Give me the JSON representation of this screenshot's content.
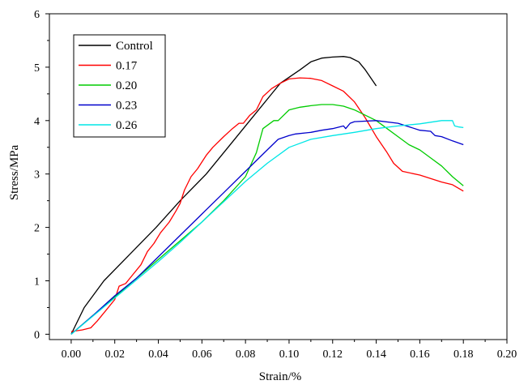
{
  "chart_data": {
    "type": "line",
    "xlabel": "Strain/%",
    "ylabel": "Stress/MPa",
    "xlim": [
      -0.01,
      0.2
    ],
    "ylim": [
      -0.1,
      6
    ],
    "xticks": [
      0.0,
      0.02,
      0.04,
      0.06,
      0.08,
      0.1,
      0.12,
      0.14,
      0.16,
      0.18,
      0.2
    ],
    "xtick_labels": [
      "0.00",
      "0.02",
      "0.04",
      "0.06",
      "0.08",
      "0.10",
      "0.12",
      "0.14",
      "0.16",
      "0.18",
      "0.20"
    ],
    "yticks": [
      0,
      1,
      2,
      3,
      4,
      5,
      6
    ],
    "ytick_labels": [
      "0",
      "1",
      "2",
      "3",
      "4",
      "5",
      "6"
    ],
    "grid": false,
    "legend_position": "top-left",
    "series": [
      {
        "name": "Control",
        "color": "#000000",
        "points": [
          [
            0.0,
            0.0
          ],
          [
            0.006,
            0.5
          ],
          [
            0.015,
            1.0
          ],
          [
            0.027,
            1.5
          ],
          [
            0.039,
            2.0
          ],
          [
            0.05,
            2.5
          ],
          [
            0.062,
            3.0
          ],
          [
            0.072,
            3.5
          ],
          [
            0.082,
            4.0
          ],
          [
            0.092,
            4.5
          ],
          [
            0.096,
            4.7
          ],
          [
            0.105,
            4.95
          ],
          [
            0.11,
            5.1
          ],
          [
            0.115,
            5.17
          ],
          [
            0.12,
            5.19
          ],
          [
            0.125,
            5.2
          ],
          [
            0.128,
            5.18
          ],
          [
            0.132,
            5.1
          ],
          [
            0.135,
            4.95
          ],
          [
            0.14,
            4.65
          ]
        ]
      },
      {
        "name": "0.17",
        "color": "#ff0000",
        "points": [
          [
            0.0,
            0.05
          ],
          [
            0.005,
            0.08
          ],
          [
            0.009,
            0.12
          ],
          [
            0.012,
            0.25
          ],
          [
            0.016,
            0.45
          ],
          [
            0.02,
            0.65
          ],
          [
            0.022,
            0.9
          ],
          [
            0.025,
            0.95
          ],
          [
            0.028,
            1.1
          ],
          [
            0.032,
            1.3
          ],
          [
            0.035,
            1.55
          ],
          [
            0.038,
            1.7
          ],
          [
            0.041,
            1.9
          ],
          [
            0.043,
            2.0
          ],
          [
            0.045,
            2.1
          ],
          [
            0.048,
            2.3
          ],
          [
            0.05,
            2.45
          ],
          [
            0.052,
            2.7
          ],
          [
            0.055,
            2.95
          ],
          [
            0.058,
            3.1
          ],
          [
            0.062,
            3.35
          ],
          [
            0.065,
            3.5
          ],
          [
            0.07,
            3.7
          ],
          [
            0.074,
            3.85
          ],
          [
            0.077,
            3.95
          ],
          [
            0.079,
            3.95
          ],
          [
            0.082,
            4.1
          ],
          [
            0.085,
            4.2
          ],
          [
            0.088,
            4.45
          ],
          [
            0.092,
            4.6
          ],
          [
            0.096,
            4.7
          ],
          [
            0.1,
            4.78
          ],
          [
            0.105,
            4.8
          ],
          [
            0.11,
            4.79
          ],
          [
            0.115,
            4.75
          ],
          [
            0.12,
            4.65
          ],
          [
            0.125,
            4.55
          ],
          [
            0.13,
            4.35
          ],
          [
            0.135,
            4.05
          ],
          [
            0.14,
            3.7
          ],
          [
            0.145,
            3.4
          ],
          [
            0.148,
            3.2
          ],
          [
            0.152,
            3.05
          ],
          [
            0.16,
            2.98
          ],
          [
            0.17,
            2.85
          ],
          [
            0.175,
            2.8
          ],
          [
            0.18,
            2.68
          ]
        ]
      },
      {
        "name": "0.20",
        "color": "#00cc00",
        "points": [
          [
            0.0,
            0.0
          ],
          [
            0.01,
            0.35
          ],
          [
            0.02,
            0.7
          ],
          [
            0.03,
            1.05
          ],
          [
            0.04,
            1.4
          ],
          [
            0.05,
            1.75
          ],
          [
            0.06,
            2.1
          ],
          [
            0.07,
            2.5
          ],
          [
            0.08,
            2.95
          ],
          [
            0.085,
            3.4
          ],
          [
            0.088,
            3.85
          ],
          [
            0.093,
            4.0
          ],
          [
            0.095,
            4.0
          ],
          [
            0.1,
            4.2
          ],
          [
            0.105,
            4.25
          ],
          [
            0.11,
            4.28
          ],
          [
            0.115,
            4.3
          ],
          [
            0.12,
            4.3
          ],
          [
            0.125,
            4.27
          ],
          [
            0.13,
            4.2
          ],
          [
            0.14,
            4.0
          ],
          [
            0.145,
            3.85
          ],
          [
            0.15,
            3.7
          ],
          [
            0.155,
            3.55
          ],
          [
            0.16,
            3.45
          ],
          [
            0.165,
            3.3
          ],
          [
            0.17,
            3.15
          ],
          [
            0.175,
            2.95
          ],
          [
            0.18,
            2.78
          ]
        ]
      },
      {
        "name": "0.23",
        "color": "#0000cc",
        "points": [
          [
            0.0,
            0.0
          ],
          [
            0.01,
            0.35
          ],
          [
            0.02,
            0.72
          ],
          [
            0.03,
            1.05
          ],
          [
            0.04,
            1.45
          ],
          [
            0.05,
            1.85
          ],
          [
            0.06,
            2.25
          ],
          [
            0.07,
            2.65
          ],
          [
            0.08,
            3.05
          ],
          [
            0.09,
            3.45
          ],
          [
            0.095,
            3.65
          ],
          [
            0.1,
            3.72
          ],
          [
            0.103,
            3.75
          ],
          [
            0.11,
            3.78
          ],
          [
            0.115,
            3.82
          ],
          [
            0.12,
            3.85
          ],
          [
            0.125,
            3.9
          ],
          [
            0.126,
            3.85
          ],
          [
            0.128,
            3.95
          ],
          [
            0.13,
            3.98
          ],
          [
            0.14,
            4.0
          ],
          [
            0.15,
            3.95
          ],
          [
            0.16,
            3.82
          ],
          [
            0.165,
            3.8
          ],
          [
            0.167,
            3.72
          ],
          [
            0.17,
            3.7
          ],
          [
            0.175,
            3.62
          ],
          [
            0.18,
            3.55
          ]
        ]
      },
      {
        "name": "0.26",
        "color": "#00e6e6",
        "points": [
          [
            0.0,
            0.0
          ],
          [
            0.01,
            0.34
          ],
          [
            0.02,
            0.68
          ],
          [
            0.03,
            1.02
          ],
          [
            0.04,
            1.36
          ],
          [
            0.05,
            1.72
          ],
          [
            0.06,
            2.1
          ],
          [
            0.07,
            2.48
          ],
          [
            0.08,
            2.86
          ],
          [
            0.09,
            3.2
          ],
          [
            0.1,
            3.5
          ],
          [
            0.11,
            3.65
          ],
          [
            0.12,
            3.72
          ],
          [
            0.13,
            3.78
          ],
          [
            0.14,
            3.85
          ],
          [
            0.15,
            3.9
          ],
          [
            0.16,
            3.94
          ],
          [
            0.165,
            3.97
          ],
          [
            0.17,
            4.0
          ],
          [
            0.175,
            4.0
          ],
          [
            0.176,
            3.9
          ],
          [
            0.178,
            3.88
          ],
          [
            0.18,
            3.87
          ]
        ]
      }
    ]
  }
}
